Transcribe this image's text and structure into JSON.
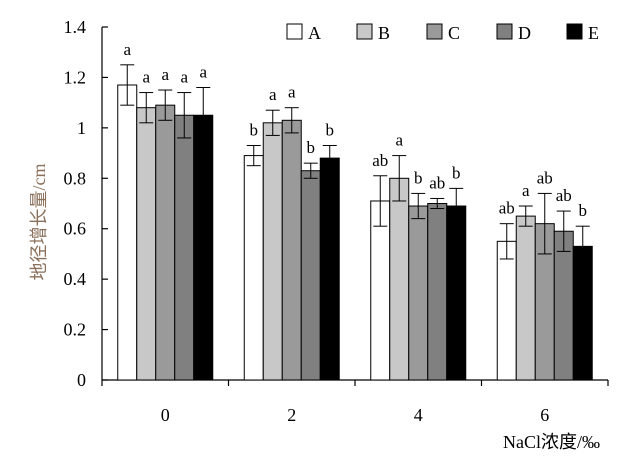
{
  "chart_data": {
    "type": "bar",
    "xlabel": "NaCl浓度/‰",
    "ylabel": "地径增长量/cm",
    "ylim": [
      0,
      1.4
    ],
    "yticks": [
      "0",
      "0.2",
      "0.4",
      "0.6",
      "0.8",
      "1",
      "1.2",
      "1.4"
    ],
    "categories": [
      "0",
      "2",
      "4",
      "6"
    ],
    "legend_position": "top-right",
    "series": [
      {
        "name": "A",
        "color": "#ffffff",
        "values": [
          1.17,
          0.89,
          0.71,
          0.55
        ],
        "errors": [
          0.08,
          0.04,
          0.1,
          0.07
        ],
        "sig": [
          "a",
          "b",
          "ab",
          "ab"
        ]
      },
      {
        "name": "B",
        "color": "#c8c8c8",
        "values": [
          1.08,
          1.02,
          0.8,
          0.65
        ],
        "errors": [
          0.06,
          0.05,
          0.09,
          0.04
        ],
        "sig": [
          "a",
          "a",
          "a",
          "a"
        ]
      },
      {
        "name": "C",
        "color": "#9a9a9a",
        "values": [
          1.09,
          1.03,
          0.69,
          0.62
        ],
        "errors": [
          0.06,
          0.05,
          0.05,
          0.12
        ],
        "sig": [
          "a",
          "a",
          "b",
          "ab"
        ]
      },
      {
        "name": "D",
        "color": "#808080",
        "values": [
          1.05,
          0.83,
          0.7,
          0.59
        ],
        "errors": [
          0.09,
          0.03,
          0.02,
          0.08
        ],
        "sig": [
          "a",
          "b",
          "ab",
          "ab"
        ]
      },
      {
        "name": "E",
        "color": "#000000",
        "values": [
          1.05,
          0.88,
          0.69,
          0.53
        ],
        "errors": [
          0.11,
          0.05,
          0.07,
          0.08
        ],
        "sig": [
          "a",
          "b",
          "b",
          "b"
        ]
      }
    ]
  }
}
